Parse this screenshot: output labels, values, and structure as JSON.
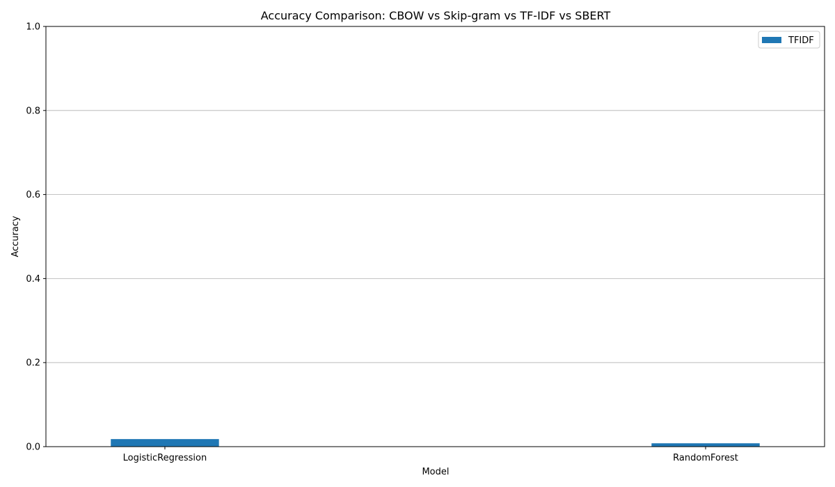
{
  "chart_data": {
    "type": "bar",
    "title": "Accuracy Comparison: CBOW vs Skip-gram vs TF-IDF vs SBERT",
    "xlabel": "Model",
    "ylabel": "Accuracy",
    "categories": [
      "LogisticRegression",
      "RandomForest"
    ],
    "series": [
      {
        "name": "TFIDF",
        "values": [
          0.018,
          0.008
        ],
        "color": "#1f77b4"
      }
    ],
    "ylim": [
      0,
      1.0
    ],
    "yticks": [
      "0.0",
      "0.2",
      "0.4",
      "0.6",
      "0.8",
      "1.0"
    ],
    "grid": "horizontal",
    "legend_position": "top-right"
  }
}
